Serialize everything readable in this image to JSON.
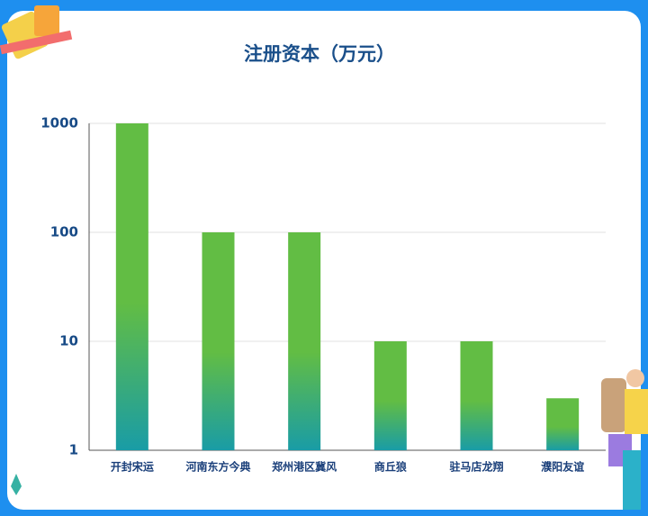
{
  "chart_data": {
    "type": "bar",
    "title": "注册资本（万元）",
    "categories": [
      "开封宋运",
      "河南东方今典",
      "郑州港区冀风",
      "商丘狼",
      "驻马店龙翔",
      "濮阳友谊"
    ],
    "values": [
      1000,
      100,
      100,
      10,
      10,
      3
    ],
    "color": [
      "#62bd44",
      "#199ca6"
    ],
    "ylim": [
      1,
      1000
    ],
    "yticks": [
      1,
      10,
      100,
      1000
    ],
    "log_scale": true,
    "grid": true
  }
}
